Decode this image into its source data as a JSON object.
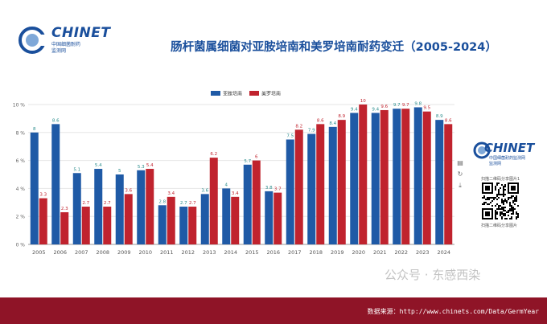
{
  "brand": {
    "name": "CHINET",
    "sub1": "中国细菌耐药",
    "sub2": "监测网"
  },
  "side_panel": {
    "brand": "CHINET",
    "sub1": "中国细菌耐药监测网",
    "sub2": "监测网",
    "qr_caption_top": "扫描二维码分享图片1",
    "qr_caption_bottom": "扫描二维码分享图片"
  },
  "footer": {
    "source": "数据来源：http://www.chinets.com/Data/GermYear"
  },
  "watermark": "公众号 · 东感西染",
  "colors": {
    "title": "#1a4f9c",
    "series1": "#1f5aa6",
    "series2": "#c0232e",
    "footer": "#8f1427"
  },
  "chart_data": {
    "type": "bar",
    "title": "肠杆菌属细菌对亚胺培南和美罗培南耐药变迁（2005-2024）",
    "xlabel": "",
    "ylabel": "",
    "ylim": [
      0,
      10
    ],
    "yticks": [
      "0 %",
      "2 %",
      "4 %",
      "6 %",
      "8 %",
      "10 %"
    ],
    "grid": true,
    "legend_position": "top-center",
    "categories": [
      "2005",
      "2006",
      "2007",
      "2008",
      "2009",
      "2010",
      "2011",
      "2012",
      "2013",
      "2014",
      "2015",
      "2016",
      "2017",
      "2018",
      "2019",
      "2020",
      "2021",
      "2022",
      "2023",
      "2024"
    ],
    "series": [
      {
        "name": "亚胺培南",
        "color": "#1f5aa6",
        "values": [
          8,
          8.6,
          5.1,
          5.4,
          5,
          5.3,
          2.8,
          2.7,
          3.6,
          4,
          5.7,
          3.8,
          7.5,
          7.9,
          8.4,
          9.4,
          9.4,
          9.7,
          9.8,
          8.9
        ]
      },
      {
        "name": "美罗培南",
        "color": "#c0232e",
        "values": [
          3.3,
          2.3,
          2.7,
          2.7,
          3.6,
          5.4,
          3.4,
          2.7,
          6.2,
          3.4,
          6,
          3.7,
          8.2,
          8.6,
          8.9,
          10,
          9.6,
          9.7,
          9.5,
          8.6
        ]
      }
    ]
  }
}
